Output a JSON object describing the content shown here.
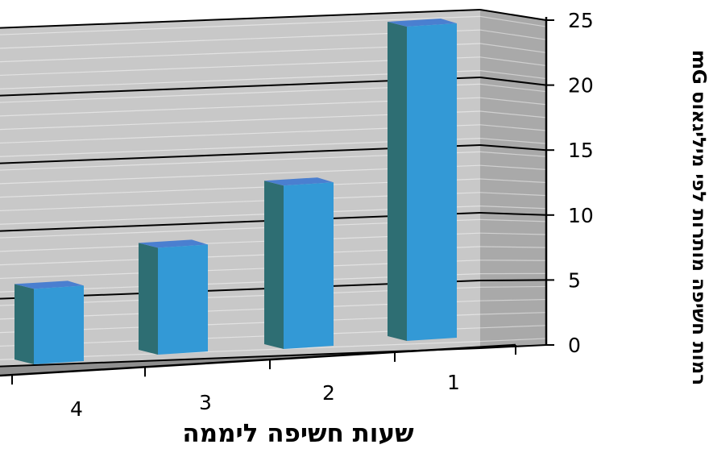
{
  "chart_data": {
    "type": "bar",
    "style": "3d-column",
    "categories": [
      "1",
      "2",
      "3",
      "4"
    ],
    "values": [
      25,
      13,
      8.5,
      6
    ],
    "xlabel": "שעות חשיפה ליממה",
    "ylabel": "רמות חשיפה מותרות לפי מיליגאוס mG",
    "ylim": [
      0,
      25
    ],
    "yticks": [
      "0",
      "5",
      "10",
      "15",
      "20",
      "25"
    ],
    "grid": true,
    "legend": "none",
    "x_axis_direction": "right-to-left",
    "colors": {
      "bar_front": "#3399d6",
      "bar_side": "#2e6e73",
      "bar_top": "#4a7fd0",
      "back_wall": "#c8c8c8",
      "side_wall": "#a9a9a9",
      "floor": "#8f8f8f",
      "gridline": "#000000"
    }
  }
}
